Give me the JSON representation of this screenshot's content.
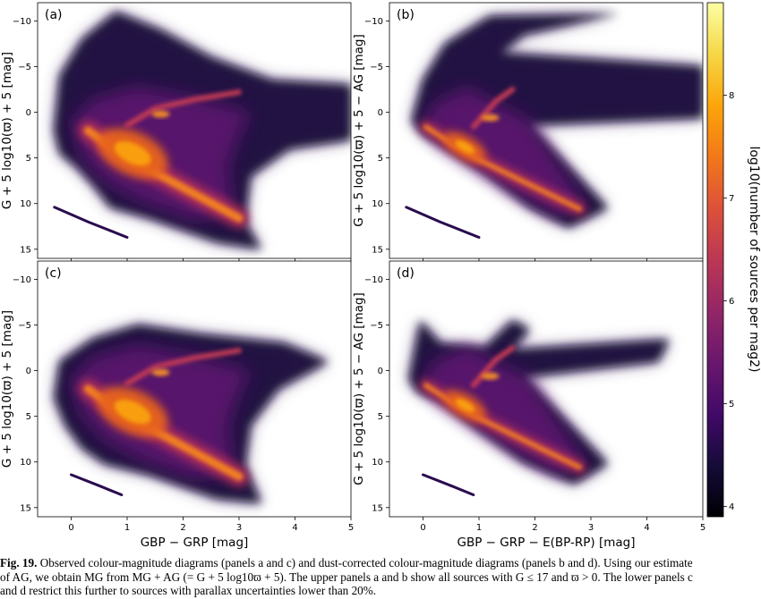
{
  "figure": {
    "panels": [
      {
        "id": "a",
        "label": "(a)",
        "ylabel": "G + 5 log10(ϖ) + 5 [mag]",
        "xlabel": "",
        "dust_corrected": false,
        "filtered": false
      },
      {
        "id": "b",
        "label": "(b)",
        "ylabel": "G + 5 log10(ϖ) + 5 − AG [mag]",
        "xlabel": "",
        "dust_corrected": true,
        "filtered": false
      },
      {
        "id": "c",
        "label": "(c)",
        "ylabel": "G + 5 log10(ϖ) + 5 [mag]",
        "xlabel": "GBP − GRP [mag]",
        "dust_corrected": false,
        "filtered": true
      },
      {
        "id": "d",
        "label": "(d)",
        "ylabel": "G + 5 log10(ϖ) + 5 − AG [mag]",
        "xlabel": "GBP − GRP − E(BP-RP) [mag]",
        "dust_corrected": true,
        "filtered": true
      }
    ],
    "colorbar": {
      "label": "log10(number of sources per mag2)",
      "ticks": [
        "4",
        "5",
        "6",
        "7",
        "8"
      ]
    }
  },
  "chart_data": {
    "type": "heatmap",
    "colormap": "inferno",
    "xlim": [
      -0.6,
      5
    ],
    "ylim": [
      16,
      -12
    ],
    "xticks": [
      "0",
      "1",
      "2",
      "3",
      "4",
      "5"
    ],
    "yticks": [
      "−10",
      "−5",
      "0",
      "5",
      "10",
      "15"
    ],
    "color_range": [
      3.9,
      8.9
    ],
    "features": [
      {
        "name": "main sequence",
        "color_from": 0.2,
        "color_to": 3.3,
        "mag_from": 1.5,
        "mag_to": 13.5
      },
      {
        "name": "red clump",
        "color": 1.2,
        "mag": 0.5
      },
      {
        "name": "white dwarf sequence",
        "color_from": -0.3,
        "color_to": 1.0,
        "mag_from": 10.5,
        "mag_to": 14
      }
    ]
  },
  "caption": {
    "line1_label": "Fig. 19.",
    "line1_text": " Observed colour-magnitude diagrams (panels a and c) and dust-corrected colour-magnitude diagrams (panels b and d). Using our estimate",
    "line2": "of AG, we obtain MG from MG + AG (= G + 5 log10ϖ + 5). The upper panels a and b show all sources with G ≤ 17 and ϖ > 0. The lower panels c",
    "line3": "and d restrict this further to sources with parallax uncertainties lower than 20%."
  }
}
